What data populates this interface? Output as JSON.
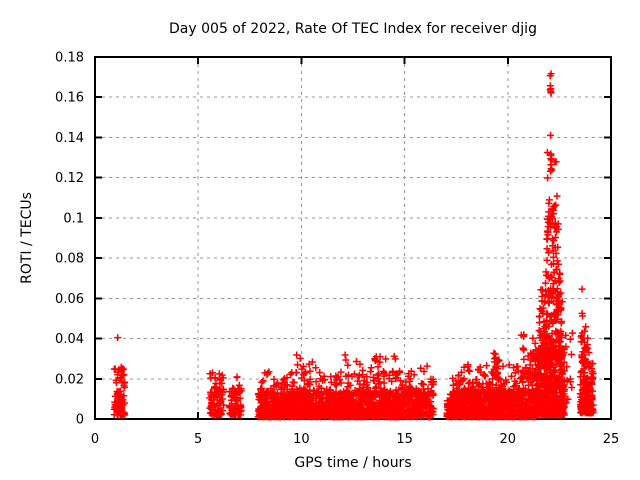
{
  "chart_data": {
    "type": "scatter",
    "title": "Day 005 of 2022, Rate Of TEC Index for receiver djig",
    "xlabel": "GPS time / hours",
    "ylabel": "ROTI / TECUs",
    "xlim": [
      0,
      25
    ],
    "ylim": [
      0,
      0.18
    ],
    "x_ticks": [
      0,
      5,
      10,
      15,
      20,
      25
    ],
    "x_tick_labels": [
      "0",
      "5",
      "10",
      "15",
      "20",
      "25"
    ],
    "y_ticks": [
      0,
      0.02,
      0.04,
      0.06,
      0.08,
      0.1,
      0.12,
      0.14,
      0.16,
      0.18
    ],
    "y_tick_labels": [
      "0",
      "0.02",
      "0.04",
      "0.06",
      "0.08",
      "0.1",
      "0.12",
      "0.14",
      "0.16",
      "0.18"
    ],
    "grid": true,
    "legend": "none",
    "marker": "plus",
    "marker_color": "#ff0000",
    "grid_color": "#999999",
    "axis_color": "#000000",
    "background_color": "#ffffff",
    "seed": 7,
    "clusters": [
      {
        "name": "early-morning",
        "x": [
          0.92,
          1.45
        ],
        "y": [
          0.002,
          0.026
        ],
        "n": 90,
        "bias": 2.2,
        "columns": 4
      },
      {
        "name": "hour6-a",
        "x": [
          5.55,
          6.25
        ],
        "y": [
          0.002,
          0.023
        ],
        "n": 85,
        "bias": 2.0,
        "columns": 4
      },
      {
        "name": "hour6-b",
        "x": [
          6.5,
          7.1
        ],
        "y": [
          0.002,
          0.021
        ],
        "n": 70,
        "bias": 2.0,
        "columns": 3
      },
      {
        "name": "midday-base",
        "x": [
          7.9,
          16.3
        ],
        "y": [
          0.001,
          0.013
        ],
        "n": 1300,
        "bias": 1.6,
        "columns": 100
      },
      {
        "name": "midday-mid",
        "x": [
          8.0,
          16.3
        ],
        "y": [
          0.012,
          0.024
        ],
        "n": 260,
        "bias": 2.2,
        "columns": 60
      },
      {
        "name": "midday-peaks",
        "x": [
          9.7,
          16.2
        ],
        "y": [
          0.021,
          0.032
        ],
        "n": 45,
        "bias": 1.3,
        "columns": 14
      },
      {
        "name": "thin-column-1630",
        "x": [
          16.25,
          16.42
        ],
        "y": [
          0.002,
          0.02
        ],
        "n": 22,
        "bias": 1.5,
        "columns": 1
      },
      {
        "name": "evening-base",
        "x": [
          17.05,
          21.35
        ],
        "y": [
          0.001,
          0.014
        ],
        "n": 850,
        "bias": 1.6,
        "columns": 55
      },
      {
        "name": "evening-mid",
        "x": [
          17.3,
          21.35
        ],
        "y": [
          0.013,
          0.027
        ],
        "n": 150,
        "bias": 2.2,
        "columns": 30
      },
      {
        "name": "evening-peak-1930",
        "x": [
          19.3,
          19.6
        ],
        "y": [
          0.02,
          0.036
        ],
        "n": 18,
        "bias": 1.3,
        "columns": 2
      },
      {
        "name": "pre-spike",
        "x": [
          20.6,
          21.35
        ],
        "y": [
          0.02,
          0.042
        ],
        "n": 40,
        "bias": 1.8,
        "columns": 6
      },
      {
        "name": "spike-core",
        "x": [
          21.35,
          22.75
        ],
        "y": [
          0.002,
          0.035
        ],
        "n": 550,
        "bias": 1.8,
        "columns": 14
      },
      {
        "name": "spike-mid",
        "x": [
          21.5,
          22.65
        ],
        "y": [
          0.03,
          0.065
        ],
        "n": 160,
        "bias": 1.6,
        "columns": 10
      },
      {
        "name": "spike-high",
        "x": [
          21.8,
          22.55
        ],
        "y": [
          0.06,
          0.105
        ],
        "n": 70,
        "bias": 1.5,
        "columns": 7
      },
      {
        "name": "spike-top",
        "x": [
          21.9,
          22.45
        ],
        "y": [
          0.095,
          0.138
        ],
        "n": 22,
        "bias": 1.2,
        "columns": 4
      },
      {
        "name": "spike-max",
        "x": [
          21.98,
          22.12
        ],
        "y": [
          0.161,
          0.173
        ],
        "n": 8,
        "bias": 1.0,
        "columns": 1
      },
      {
        "name": "spike-tail",
        "x": [
          22.78,
          23.15
        ],
        "y": [
          0.008,
          0.05
        ],
        "n": 12,
        "bias": 1.5,
        "columns": 2
      },
      {
        "name": "night-cluster",
        "x": [
          23.5,
          24.15
        ],
        "y": [
          0.003,
          0.028
        ],
        "n": 160,
        "bias": 1.8,
        "columns": 5
      },
      {
        "name": "night-upper",
        "x": [
          23.55,
          23.95
        ],
        "y": [
          0.028,
          0.046
        ],
        "n": 30,
        "bias": 1.5,
        "columns": 3
      }
    ],
    "outliers": [
      [
        1.1,
        0.0405
      ],
      [
        22.07,
        0.141
      ],
      [
        22.1,
        0.131
      ],
      [
        22.12,
        0.1288
      ],
      [
        22.08,
        0.1295
      ],
      [
        22.1,
        0.1245
      ],
      [
        22.13,
        0.1238
      ],
      [
        22.07,
        0.1232
      ],
      [
        23.6,
        0.0646
      ],
      [
        23.6,
        0.0525
      ],
      [
        23.62,
        0.0512
      ],
      [
        23.55,
        0.0408
      ]
    ]
  }
}
